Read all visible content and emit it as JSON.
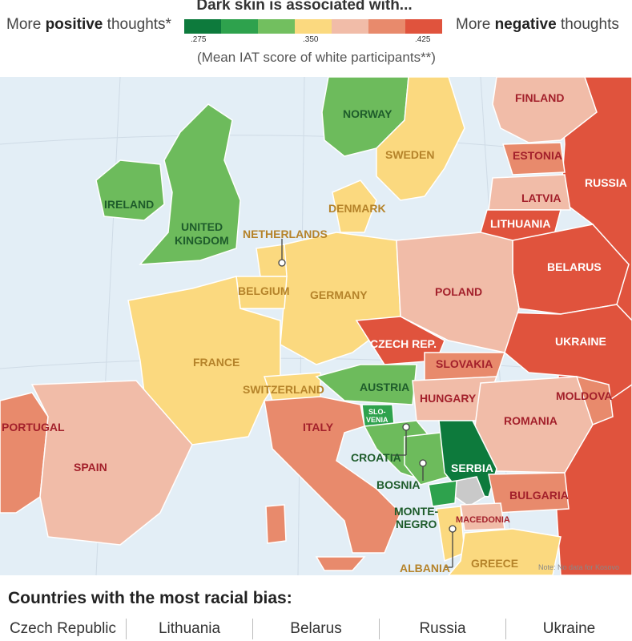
{
  "legend": {
    "title": "Dark skin is associated with...",
    "left_label_pre": "More ",
    "left_label_bold": "positive",
    "left_label_post": " thoughts*",
    "right_label_pre": "More ",
    "right_label_bold": "negative",
    "right_label_post": " thoughts",
    "subtitle": "(Mean IAT score of white participants**)",
    "ticks": [
      ".275",
      ".350",
      ".425"
    ],
    "colors": [
      "#0d7a3c",
      "#2ea24d",
      "#72bf5f",
      "#fbd97f",
      "#f1bca8",
      "#e88a6c",
      "#e0533d"
    ]
  },
  "colors": {
    "sea": "#e3eef6",
    "nodata": "#c9c9c9",
    "dark_green": "#0d7a3c",
    "mid_green": "#2ea24d",
    "light_green": "#6dbb5c",
    "yellow": "#fbd97f",
    "pink": "#f1bca8",
    "salmon": "#e88a6c",
    "red": "#e0533d"
  },
  "countries": {
    "finland": "FINLAND",
    "norway": "NORWAY",
    "sweden": "SWEDEN",
    "estonia": "ESTONIA",
    "russia": "RUSSIA",
    "latvia": "LATVIA",
    "ireland": "IRELAND",
    "denmark": "DENMARK",
    "lithuania": "LITHUANIA",
    "uk_line1": "UNITED",
    "uk_line2": "KINGDOM",
    "netherlands": "NETHERLANDS",
    "belarus": "BELARUS",
    "poland": "POLAND",
    "belgium": "BELGIUM",
    "germany": "GERMANY",
    "czech": "CZECH REP.",
    "ukraine": "UKRAINE",
    "france": "FRANCE",
    "slovakia": "SLOVAKIA",
    "switzerland": "SWITZERLAND",
    "austria": "AUSTRIA",
    "hungary": "HUNGARY",
    "moldova": "MOLDOVA",
    "slovenia_line1": "SLO-",
    "slovenia_line2": "VENIA",
    "portugal": "PORTUGAL",
    "italy": "ITALY",
    "romania": "ROMANIA",
    "croatia": "CROATIA",
    "serbia": "SERBIA",
    "spain": "SPAIN",
    "bosnia": "BOSNIA",
    "bulgaria": "BULGARIA",
    "montenegro_line1": "MONTE-",
    "montenegro_line2": "NEGRO",
    "macedonia": "MACEDONIA",
    "albania": "ALBANIA",
    "greece": "GREECE"
  },
  "note": "Note: No data for Kosovo",
  "bottom": {
    "title": "Countries with the most racial bias:",
    "countries": [
      "Czech Republic",
      "Lithuania",
      "Belarus",
      "Russia",
      "Ukraine"
    ]
  }
}
